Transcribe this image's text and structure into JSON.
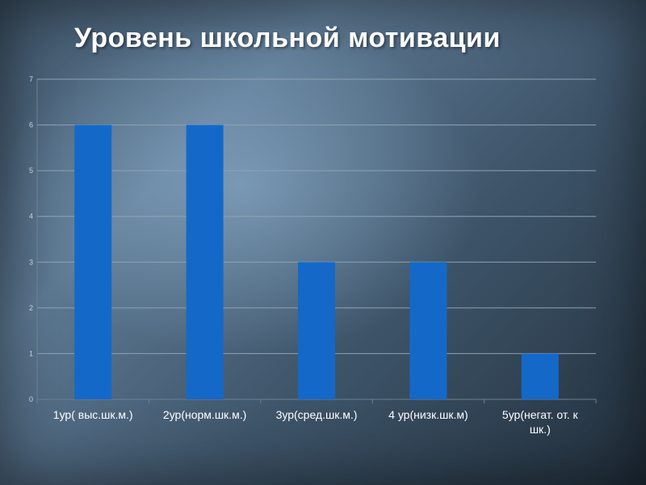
{
  "slide": {
    "title": "Уровень школьной мотивации"
  },
  "chart_data": {
    "type": "bar",
    "title": "",
    "xlabel": "",
    "ylabel": "",
    "categories": [
      [
        "1ур( выс.шк.м.)"
      ],
      [
        "2ур(норм.шк.м.)"
      ],
      [
        "3ур(сред.шк.м.)"
      ],
      [
        "4 ур(низк.шк.м)"
      ],
      [
        "5ур(негат. от. к",
        "шк.)"
      ]
    ],
    "values": [
      6,
      6,
      3,
      3,
      1
    ],
    "ylim": [
      0,
      7
    ],
    "yticks": [
      0,
      1,
      2,
      3,
      4,
      5,
      6,
      7
    ],
    "grid": true,
    "legend": "none",
    "colors": {
      "bar": "#1469c8",
      "gridline": "#8fa2b3",
      "axis": "#6c8194"
    }
  }
}
